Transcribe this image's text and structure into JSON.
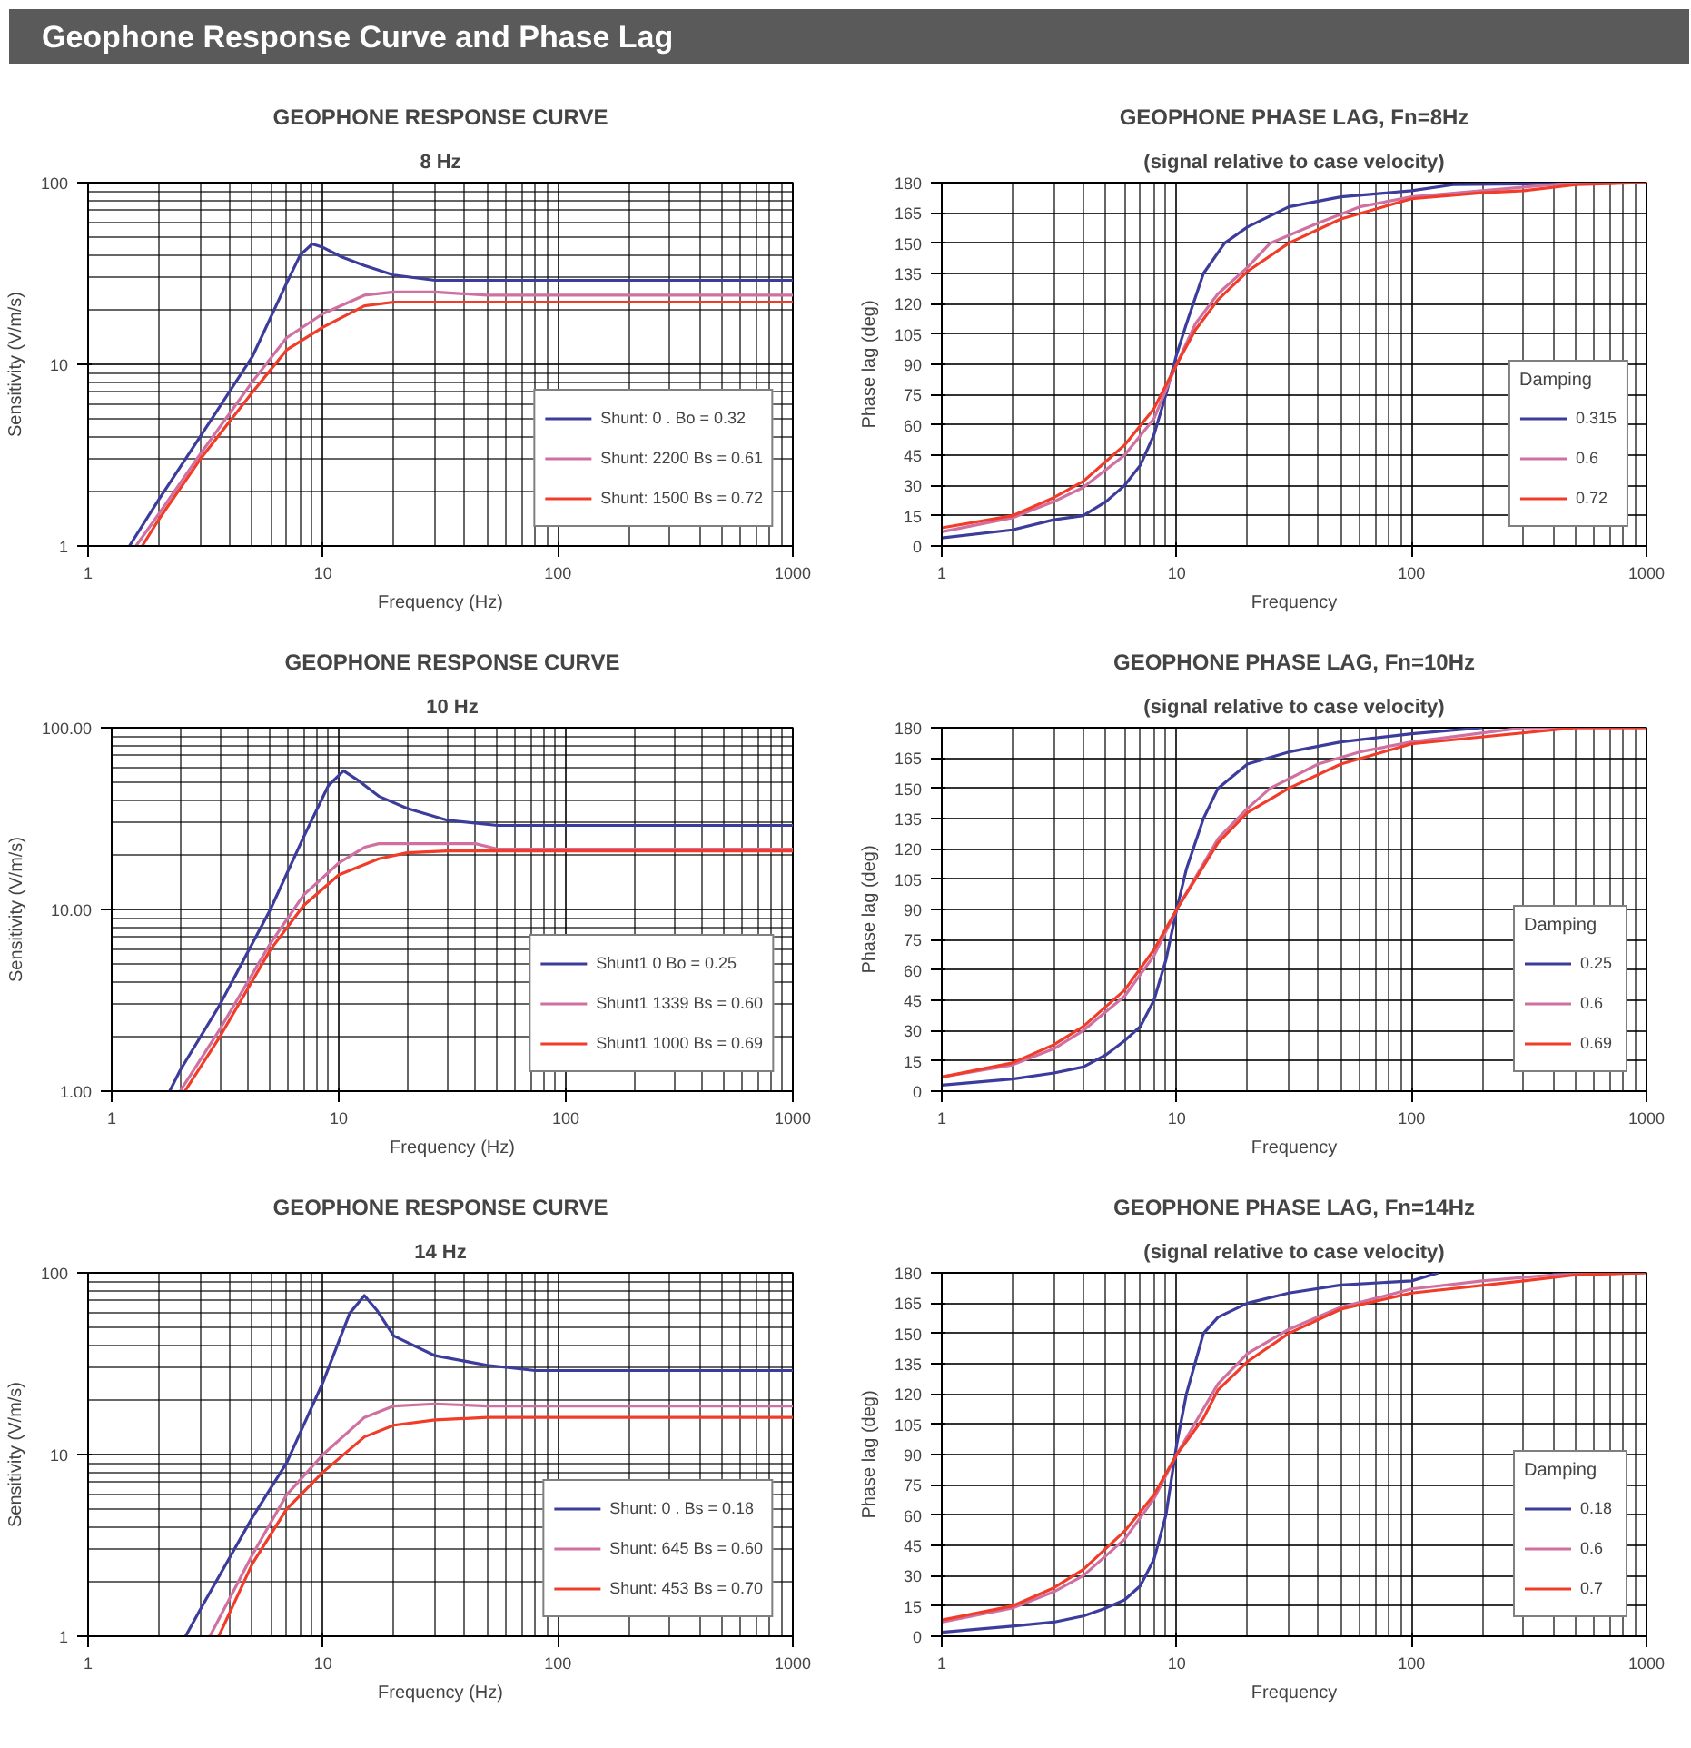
{
  "chart_data": [
    {
      "type": "other",
      "title": "Geophone Response Curve and Phase Lag"
    },
    {
      "type": "line",
      "title": "GEOPHONE RESPONSE CURVE",
      "subtitle": "8 Hz",
      "xlabel": "Frequency (Hz)",
      "ylabel": "Sensitivity (V/m/s)",
      "log": "xy",
      "grid": true,
      "legend": "bottom right",
      "xlim": [
        1,
        1000
      ],
      "xticks": [
        1,
        10,
        100,
        1000
      ],
      "ylim": [
        1,
        100
      ],
      "yticks": [
        1,
        10,
        100
      ],
      "series": [
        {
          "name": "Shunt: 0 . Bo = 0.32",
          "color": "#3c3c9c",
          "x": [
            1.5,
            2,
            3,
            5,
            7,
            8,
            9,
            10,
            12,
            15,
            20,
            30,
            50,
            100,
            1000
          ],
          "values": [
            1,
            1.8,
            4,
            11,
            28,
            40,
            46,
            44,
            39,
            35,
            31,
            29,
            29,
            29,
            29
          ]
        },
        {
          "name": "Shunt: 2200 Bs = 0.61",
          "color": "#d070a0",
          "x": [
            1.6,
            2,
            3,
            5,
            7,
            10,
            15,
            20,
            30,
            50,
            100,
            1000
          ],
          "values": [
            1,
            1.5,
            3.2,
            8,
            14,
            19,
            24,
            25,
            25,
            24,
            24,
            24
          ]
        },
        {
          "name": "Shunt: 1500 Bs = 0.72",
          "color": "#f03c28",
          "x": [
            1.7,
            2,
            3,
            5,
            7,
            10,
            15,
            20,
            30,
            100,
            1000
          ],
          "values": [
            1,
            1.4,
            3,
            7,
            12,
            16,
            21,
            22,
            22,
            22,
            22
          ]
        }
      ]
    },
    {
      "type": "line",
      "title": "GEOPHONE PHASE LAG, Fn=8Hz",
      "subtitle": "(signal relative to case velocity)",
      "xlabel": "Frequency",
      "ylabel": "Phase lag (deg)",
      "log": "x",
      "grid": true,
      "legend": "bottom right",
      "legend_title": "Damping",
      "xlim": [
        1,
        1000
      ],
      "xticks": [
        1,
        10,
        100,
        1000
      ],
      "ylim": [
        0,
        180
      ],
      "yticks": [
        0,
        15,
        30,
        45,
        60,
        75,
        90,
        105,
        120,
        135,
        150,
        165,
        180
      ],
      "series": [
        {
          "name": "0.315",
          "color": "#3c3c9c",
          "x": [
            1,
            2,
            3,
            4,
            5,
            6,
            7,
            8,
            9,
            10,
            11,
            13,
            16,
            20,
            30,
            50,
            100,
            150,
            1000
          ],
          "values": [
            4,
            8,
            13,
            15,
            22,
            30,
            40,
            55,
            75,
            95,
            110,
            135,
            150,
            158,
            168,
            173,
            176,
            179,
            180
          ]
        },
        {
          "name": "0.6",
          "color": "#d070a0",
          "x": [
            1,
            2,
            3,
            4,
            6,
            8,
            10,
            12,
            15,
            20,
            25,
            40,
            60,
            100,
            200,
            500,
            1000
          ],
          "values": [
            7,
            14,
            22,
            29,
            45,
            63,
            90,
            110,
            125,
            138,
            150,
            160,
            168,
            173,
            176,
            180,
            180
          ]
        },
        {
          "name": "0.72",
          "color": "#f03c28",
          "x": [
            1,
            2,
            3,
            4,
            6,
            8,
            10,
            12,
            15,
            20,
            30,
            50,
            100,
            200,
            300,
            500,
            1000
          ],
          "values": [
            9,
            15,
            24,
            32,
            50,
            68,
            90,
            107,
            122,
            136,
            150,
            162,
            172,
            175,
            176,
            179,
            180
          ]
        }
      ]
    },
    {
      "type": "line",
      "title": "GEOPHONE RESPONSE CURVE",
      "subtitle": "10 Hz",
      "xlabel": "Frequency (Hz)",
      "ylabel": "Sensitivity (V/m/s)",
      "log": "xy",
      "grid": true,
      "legend": "bottom right",
      "xlim": [
        1,
        1000
      ],
      "xticks": [
        1,
        10,
        100,
        1000
      ],
      "ylim": [
        1,
        100
      ],
      "yticks": [
        {
          "value": 1,
          "label": "1.00"
        },
        {
          "value": 10,
          "label": "10.00"
        },
        {
          "value": 100,
          "label": "100.00"
        }
      ],
      "series": [
        {
          "name": "Shunt1 0 Bo = 0.25",
          "color": "#3c3c9c",
          "x": [
            1.8,
            2,
            3,
            5,
            7,
            9,
            10.5,
            12,
            15,
            20,
            30,
            50,
            100,
            1000
          ],
          "values": [
            1,
            1.3,
            3,
            10,
            25,
            48,
            58,
            52,
            42,
            36,
            31,
            29,
            29,
            29
          ]
        },
        {
          "name": "Shunt1 1339 Bs = 0.60",
          "color": "#d070a0",
          "x": [
            2,
            3,
            5,
            7,
            10,
            13,
            15,
            20,
            40,
            50,
            100,
            1000
          ],
          "values": [
            1,
            2.2,
            6.5,
            12,
            18,
            22,
            23,
            23,
            23,
            21.5,
            21.5,
            21.5
          ]
        },
        {
          "name": "Shunt1 1000 Bs = 0.69",
          "color": "#f03c28",
          "x": [
            2.1,
            3,
            5,
            7,
            10,
            15,
            20,
            30,
            100,
            1000
          ],
          "values": [
            1,
            2,
            6,
            10.5,
            15.5,
            19,
            20.5,
            21,
            21,
            21
          ]
        }
      ]
    },
    {
      "type": "line",
      "title": "GEOPHONE PHASE LAG, Fn=10Hz",
      "subtitle": "(signal relative to case velocity)",
      "xlabel": "Frequency",
      "ylabel": "Phase lag (deg)",
      "log": "x",
      "grid": true,
      "legend": "bottom right",
      "legend_title": "Damping",
      "xlim": [
        1,
        1000
      ],
      "xticks": [
        1,
        10,
        100,
        1000
      ],
      "ylim": [
        0,
        180
      ],
      "yticks": [
        0,
        15,
        30,
        45,
        60,
        75,
        90,
        105,
        120,
        135,
        150,
        165,
        180
      ],
      "series": [
        {
          "name": "0.25",
          "color": "#3c3c9c",
          "x": [
            1,
            2,
            3,
            4,
            5,
            6,
            7,
            8,
            9,
            10,
            11,
            13,
            15,
            20,
            30,
            50,
            100,
            200
          ],
          "values": [
            3,
            6,
            9,
            12,
            18,
            25,
            32,
            45,
            65,
            90,
            110,
            135,
            150,
            162,
            168,
            173,
            177,
            180
          ]
        },
        {
          "name": "0.6",
          "color": "#d070a0",
          "x": [
            1,
            2,
            3,
            4,
            6,
            8,
            10,
            15,
            20,
            25,
            40,
            60,
            100,
            300,
            1000
          ],
          "values": [
            7,
            13,
            21,
            30,
            47,
            67,
            90,
            125,
            140,
            150,
            162,
            168,
            173,
            180,
            180
          ]
        },
        {
          "name": "0.69",
          "color": "#f03c28",
          "x": [
            1,
            2,
            3,
            4,
            6,
            8,
            10,
            15,
            20,
            30,
            50,
            100,
            500,
            1000
          ],
          "values": [
            7,
            14,
            23,
            32,
            50,
            70,
            90,
            123,
            138,
            150,
            162,
            172,
            180,
            180
          ]
        }
      ]
    },
    {
      "type": "line",
      "title": "GEOPHONE RESPONSE CURVE",
      "subtitle": "14 Hz",
      "xlabel": "Frequency (Hz)",
      "ylabel": "Sensitivity (V/m/s)",
      "log": "xy",
      "grid": true,
      "legend": "bottom right",
      "xlim": [
        1,
        1000
      ],
      "xticks": [
        1,
        10,
        100,
        1000
      ],
      "ylim": [
        1,
        100
      ],
      "yticks": [
        1,
        10,
        100
      ],
      "series": [
        {
          "name": "Shunt: 0 . Bs = 0.18",
          "color": "#3c3c9c",
          "x": [
            2.6,
            3,
            5,
            7,
            10,
            13,
            15,
            17,
            20,
            30,
            50,
            80,
            100,
            1000
          ],
          "values": [
            1,
            1.4,
            4.5,
            9,
            25,
            60,
            75,
            62,
            45,
            35,
            31,
            29,
            29,
            29
          ]
        },
        {
          "name": "Shunt: 645 Bs = 0.60",
          "color": "#d070a0",
          "x": [
            3.3,
            5,
            7,
            10,
            15,
            20,
            30,
            50,
            100,
            1000
          ],
          "values": [
            1,
            2.8,
            6,
            10,
            16,
            18.5,
            19,
            18.5,
            18.5,
            18.5
          ]
        },
        {
          "name": "Shunt: 453 Bs = 0.70",
          "color": "#f03c28",
          "x": [
            3.6,
            5,
            7,
            10,
            15,
            20,
            30,
            50,
            100,
            1000
          ],
          "values": [
            1,
            2.5,
            5,
            8,
            12.5,
            14.5,
            15.5,
            16,
            16,
            16
          ]
        }
      ]
    },
    {
      "type": "line",
      "title": "GEOPHONE PHASE LAG, Fn=14Hz",
      "subtitle": "(signal relative to case velocity)",
      "xlabel": "Frequency",
      "ylabel": "Phase lag (deg)",
      "log": "x",
      "grid": true,
      "legend": "bottom right",
      "legend_title": "Damping",
      "xlim": [
        1,
        1000
      ],
      "xticks": [
        1,
        10,
        100,
        1000
      ],
      "ylim": [
        0,
        180
      ],
      "yticks": [
        0,
        15,
        30,
        45,
        60,
        75,
        90,
        105,
        120,
        135,
        150,
        165,
        180
      ],
      "series": [
        {
          "name": "0.18",
          "color": "#3c3c9c",
          "x": [
            1,
            2,
            3,
            4,
            5,
            6,
            7,
            8,
            9,
            10,
            11,
            13,
            15,
            20,
            30,
            50,
            100,
            130
          ],
          "values": [
            2,
            5,
            7,
            10,
            14,
            18,
            25,
            38,
            60,
            95,
            120,
            150,
            158,
            165,
            170,
            174,
            176,
            180
          ]
        },
        {
          "name": "0.6",
          "color": "#d070a0",
          "x": [
            1,
            2,
            3,
            4,
            6,
            8,
            10,
            15,
            20,
            30,
            50,
            100,
            200,
            400,
            1000
          ],
          "values": [
            7,
            14,
            22,
            30,
            48,
            68,
            90,
            125,
            140,
            152,
            163,
            172,
            176,
            179,
            180
          ]
        },
        {
          "name": "0.7",
          "color": "#f03c28",
          "x": [
            1,
            2,
            3,
            4,
            6,
            8,
            10,
            13,
            15,
            20,
            30,
            50,
            100,
            300,
            500,
            1000
          ],
          "values": [
            8,
            15,
            24,
            33,
            52,
            70,
            90,
            108,
            122,
            136,
            150,
            162,
            170,
            176,
            179,
            180
          ]
        }
      ]
    }
  ]
}
